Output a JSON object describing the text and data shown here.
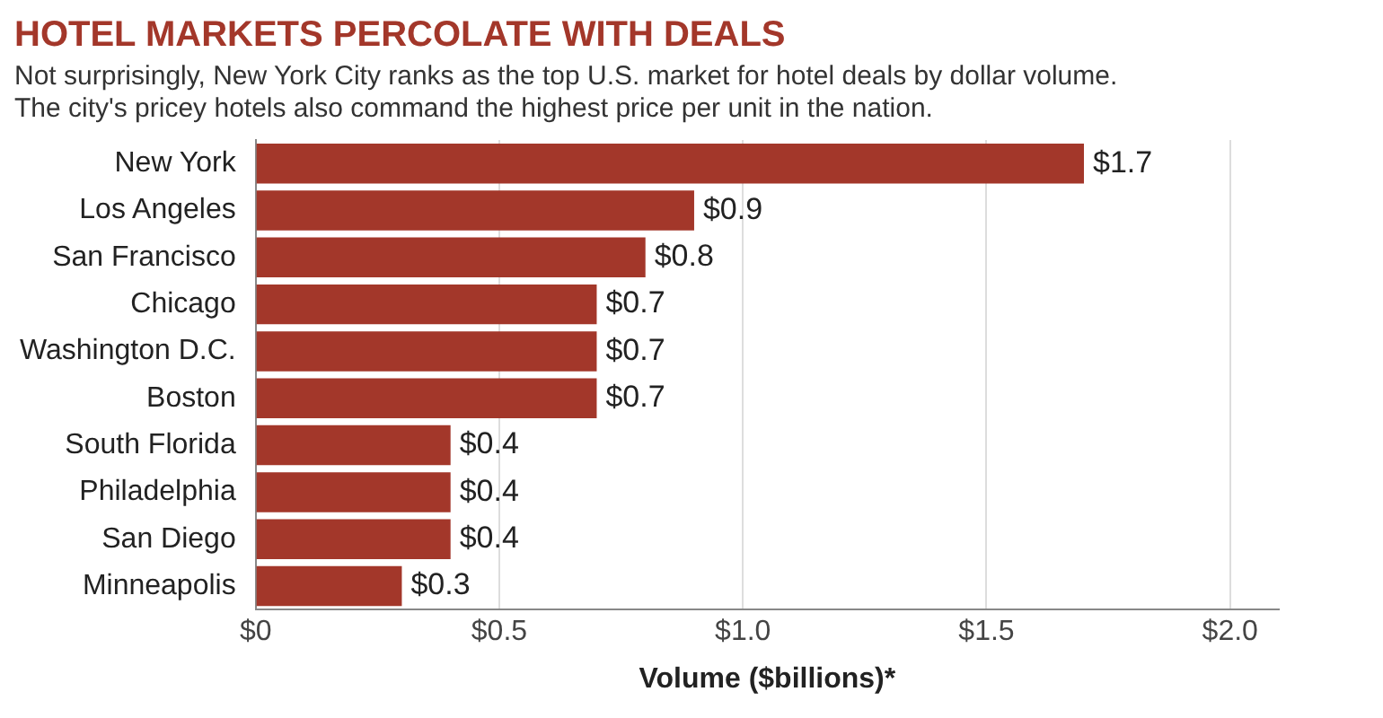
{
  "chart_data": {
    "type": "bar",
    "orientation": "horizontal",
    "title": "HOTEL MARKETS PERCOLATE WITH DEALS",
    "subtitle": "Not surprisingly, New York City ranks as the top U.S. market for hotel deals by dollar volume. The city's pricey hotels also command the highest price per unit in the nation.",
    "xlabel": "Volume ($billions)*",
    "categories": [
      "New York",
      "Los Angeles",
      "San Francisco",
      "Chicago",
      "Washington D.C.",
      "Boston",
      "South Florida",
      "Philadelphia",
      "San Diego",
      "Minneapolis"
    ],
    "values": [
      1.7,
      0.9,
      0.8,
      0.7,
      0.7,
      0.7,
      0.4,
      0.4,
      0.4,
      0.3
    ],
    "value_labels": [
      "$1.7",
      "$0.9",
      "$0.8",
      "$0.7",
      "$0.7",
      "$0.7",
      "$0.4",
      "$0.4",
      "$0.4",
      "$0.3"
    ],
    "color": "#a3372a",
    "xlim": [
      0,
      2.1
    ],
    "xticks": [
      {
        "value": 0,
        "label": "$0"
      },
      {
        "value": 0.5,
        "label": "$0.5"
      },
      {
        "value": 1,
        "label": "$1.0"
      },
      {
        "value": 1.5,
        "label": "$1.5"
      },
      {
        "value": 2,
        "label": "$2.0"
      }
    ],
    "grid": "x"
  }
}
